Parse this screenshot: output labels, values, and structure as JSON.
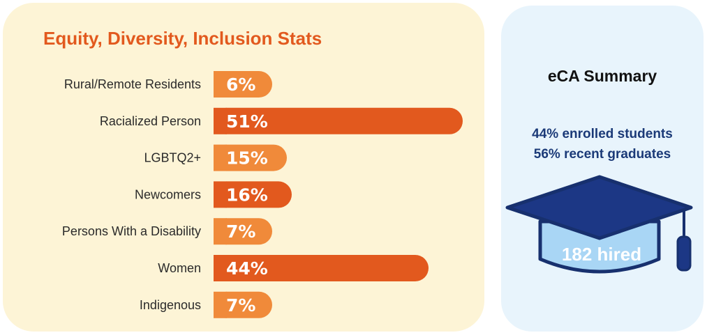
{
  "chart_data": {
    "type": "bar",
    "orientation": "horizontal",
    "title": "Equity, Diversity, Inclusion Stats",
    "categories": [
      "Rural/Remote Residents",
      "Racialized Person",
      "LGBTQ2+",
      "Newcomers",
      "Persons With a Disability",
      "Women",
      "Indigenous"
    ],
    "values": [
      6,
      51,
      15,
      16,
      7,
      44,
      7
    ],
    "value_labels": [
      "6%",
      "51%",
      "15%",
      "16%",
      "7%",
      "44%",
      "7%"
    ],
    "unit": "%",
    "colors": {
      "light_bar": "#f08a3a",
      "dark_bar": "#e2591e",
      "bar_text": "#ffffff",
      "category_text": "#2a2a2a"
    },
    "grid": false,
    "legend": "none"
  },
  "summary": {
    "title": "eCA Summary",
    "stats": [
      "44% enrolled students",
      "56% recent graduates"
    ],
    "hired_label": "182 hired",
    "cap_icon": "graduation-cap-icon",
    "colors": {
      "cap_board": "#1c3785",
      "cap_base": "#a9d6f5",
      "outline": "#17306e",
      "text": "#1b3a78"
    }
  },
  "theme": {
    "left_panel_bg": "#fdf4d6",
    "right_panel_bg": "#e8f4fc",
    "title_color": "#e2591e"
  }
}
